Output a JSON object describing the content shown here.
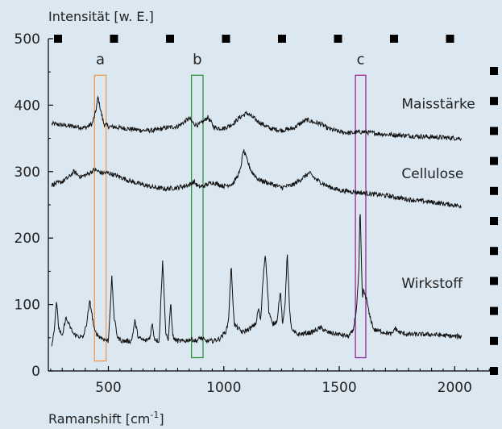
{
  "chart_data": {
    "type": "line",
    "ylabel": "Intensität [w. E.]",
    "xlabel": "Ramanshift [cm⁻¹]",
    "xlabel_unit_exponent": "-1",
    "xlim": [
      240,
      2170
    ],
    "ylim": [
      0,
      500
    ],
    "x_ticks": [
      500,
      1000,
      1500,
      2000
    ],
    "y_ticks": [
      0,
      100,
      200,
      300,
      400,
      500
    ],
    "colors": {
      "background": "#dbe7f1",
      "line": "#111111",
      "band_a": "#f39a4a",
      "band_b": "#2a9a3a",
      "band_c": "#9a2a9a"
    },
    "bands": [
      {
        "label": "a",
        "x_range": [
          440,
          490
        ],
        "y_range": [
          15,
          445
        ]
      },
      {
        "label": "b",
        "x_range": [
          860,
          910
        ],
        "y_range": [
          20,
          445
        ]
      },
      {
        "label": "c",
        "x_range": [
          1570,
          1615
        ],
        "y_range": [
          20,
          445
        ]
      }
    ],
    "series": [
      {
        "name": "Maisstärke",
        "x": [
          255,
          300,
          350,
          400,
          430,
          445,
          455,
          465,
          480,
          500,
          550,
          600,
          650,
          700,
          750,
          800,
          830,
          850,
          870,
          890,
          910,
          930,
          960,
          1000,
          1040,
          1070,
          1100,
          1120,
          1150,
          1200,
          1250,
          1300,
          1330,
          1360,
          1390,
          1420,
          1450,
          1500,
          1550,
          1600,
          1650,
          1700,
          1800,
          1900,
          2030
        ],
        "y": [
          372,
          370,
          368,
          366,
          372,
          390,
          412,
          395,
          372,
          368,
          366,
          364,
          362,
          362,
          366,
          368,
          375,
          380,
          372,
          370,
          375,
          382,
          366,
          365,
          372,
          382,
          388,
          383,
          375,
          365,
          362,
          365,
          372,
          378,
          374,
          372,
          365,
          360,
          358,
          360,
          358,
          356,
          354,
          352,
          350
        ]
      },
      {
        "name": "Cellulose",
        "x": [
          255,
          300,
          330,
          350,
          380,
          410,
          440,
          470,
          500,
          550,
          600,
          650,
          700,
          750,
          800,
          850,
          870,
          890,
          910,
          950,
          1000,
          1040,
          1070,
          1085,
          1100,
          1120,
          1150,
          1200,
          1250,
          1300,
          1340,
          1370,
          1400,
          1450,
          1500,
          1600,
          1700,
          1800,
          1900,
          2030
        ],
        "y": [
          280,
          285,
          292,
          300,
          292,
          296,
          303,
          298,
          298,
          292,
          285,
          280,
          276,
          274,
          276,
          280,
          285,
          277,
          278,
          284,
          278,
          282,
          300,
          332,
          318,
          300,
          288,
          282,
          276,
          280,
          290,
          298,
          288,
          278,
          272,
          268,
          264,
          258,
          254,
          248
        ]
      },
      {
        "name": "Wirkstoff",
        "x": [
          255,
          265,
          275,
          285,
          300,
          315,
          350,
          390,
          405,
          420,
          440,
          460,
          480,
          500,
          515,
          525,
          540,
          560,
          600,
          615,
          630,
          660,
          680,
          690,
          700,
          720,
          735,
          748,
          760,
          770,
          778,
          785,
          800,
          830,
          860,
          880,
          900,
          920,
          950,
          980,
          1010,
          1020,
          1032,
          1045,
          1080,
          1120,
          1140,
          1150,
          1160,
          1170,
          1180,
          1195,
          1210,
          1230,
          1245,
          1255,
          1265,
          1275,
          1285,
          1295,
          1320,
          1380,
          1420,
          1450,
          1500,
          1540,
          1560,
          1575,
          1585,
          1590,
          1595,
          1600,
          1605,
          1612,
          1620,
          1630,
          1650,
          1700,
          1730,
          1740,
          1760,
          1800,
          1900,
          2000,
          2030
        ],
        "y": [
          40,
          60,
          105,
          65,
          50,
          80,
          55,
          50,
          70,
          105,
          60,
          52,
          48,
          45,
          140,
          80,
          50,
          45,
          45,
          75,
          50,
          45,
          50,
          72,
          48,
          45,
          168,
          60,
          45,
          105,
          55,
          48,
          45,
          45,
          48,
          45,
          50,
          45,
          45,
          48,
          60,
          75,
          158,
          70,
          58,
          65,
          72,
          95,
          75,
          140,
          178,
          90,
          70,
          75,
          120,
          68,
          100,
          178,
          90,
          60,
          55,
          58,
          65,
          58,
          55,
          52,
          60,
          95,
          150,
          248,
          180,
          110,
          120,
          115,
          105,
          85,
          62,
          58,
          55,
          65,
          58,
          55,
          55,
          52,
          52
        ]
      }
    ]
  }
}
